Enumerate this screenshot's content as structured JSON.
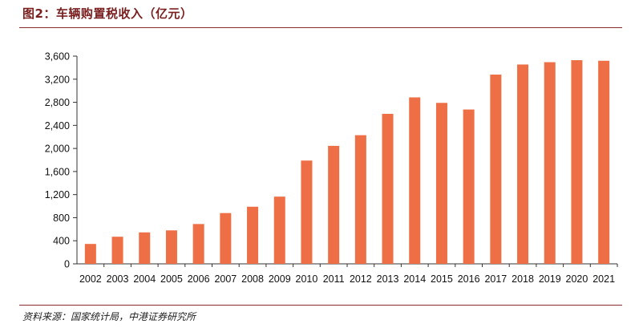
{
  "title": "图2：车辆购置税收入（亿元）",
  "source": "资料来源：国家统计局，中港证券研究所",
  "colors": {
    "bar": "#EE6F45",
    "rule": "#8A2A2A",
    "title": "#7A1F1F"
  },
  "chart_data": {
    "type": "bar",
    "title": "",
    "xlabel": "",
    "ylabel": "",
    "ylim": [
      0,
      3600
    ],
    "yticks": [
      0,
      400,
      800,
      1200,
      1600,
      2000,
      2400,
      2800,
      3200,
      3600
    ],
    "ytick_labels": [
      "0",
      "400",
      "800",
      "1,200",
      "1,600",
      "2,000",
      "2,400",
      "2,800",
      "3,200",
      "3,600"
    ],
    "grid": false,
    "categories": [
      "2002",
      "2003",
      "2004",
      "2005",
      "2006",
      "2007",
      "2008",
      "2009",
      "2010",
      "2011",
      "2012",
      "2013",
      "2014",
      "2015",
      "2016",
      "2017",
      "2018",
      "2019",
      "2020",
      "2021"
    ],
    "values": [
      345,
      470,
      545,
      580,
      690,
      880,
      990,
      1165,
      1790,
      2045,
      2230,
      2600,
      2885,
      2790,
      2675,
      3280,
      3455,
      3495,
      3530,
      3520
    ]
  }
}
